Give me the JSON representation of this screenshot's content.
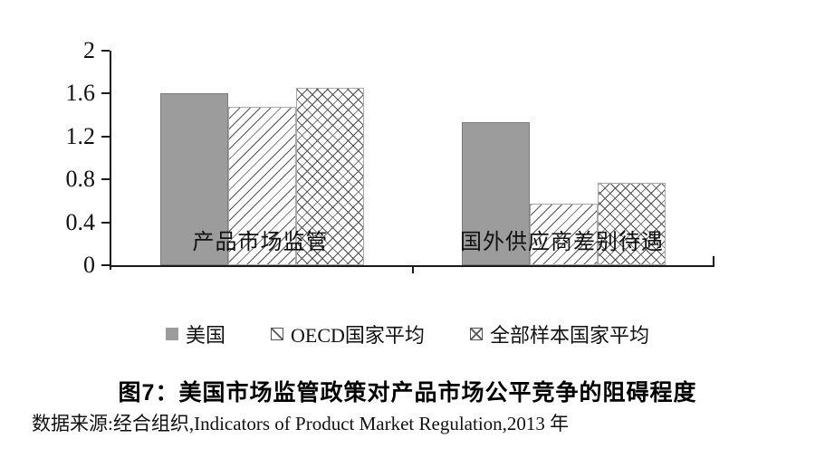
{
  "chart_data": {
    "type": "bar",
    "title": "图7：美国市场监管政策对产品市场公平竞争的阻碍程度",
    "source": "数据来源:经合组织,Indicators of Product Market Regulation,2013 年",
    "categories": [
      "产品市场监管",
      "国外供应商差别待遇"
    ],
    "series": [
      {
        "name": "美国",
        "pattern": "solid",
        "values": [
          1.6,
          1.33
        ]
      },
      {
        "name": "OECD国家平均",
        "pattern": "diagonal",
        "values": [
          1.48,
          0.57
        ]
      },
      {
        "name": "全部样本国家平均",
        "pattern": "crosshatch",
        "values": [
          1.65,
          0.77
        ]
      }
    ],
    "xlabel": "",
    "ylabel": "",
    "ylim": [
      0,
      2
    ],
    "ytick_labels": [
      "0",
      "0.4",
      "0.8",
      "1.2",
      "1.6",
      "2"
    ],
    "grid": false,
    "legend_position": "bottom",
    "colors": {
      "bar_solid": "#9c9c9c",
      "bar_border": "#7c7c7c",
      "hatch_line": "#4e4e4e",
      "axis": "#1a1a1a",
      "text": "#111111"
    }
  }
}
